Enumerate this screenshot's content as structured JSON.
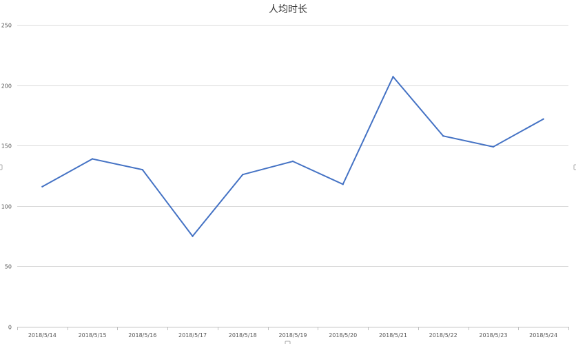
{
  "chart_data": {
    "type": "line",
    "title": "人均时长",
    "xlabel": "",
    "ylabel": "",
    "categories": [
      "2018/5/14",
      "2018/5/15",
      "2018/5/16",
      "2018/5/17",
      "2018/5/18",
      "2018/5/19",
      "2018/5/20",
      "2018/5/21",
      "2018/5/22",
      "2018/5/23",
      "2018/5/24"
    ],
    "series": [
      {
        "values": [
          116,
          139,
          130,
          75,
          126,
          137,
          118,
          207,
          158,
          149,
          172
        ],
        "color": "#4472c4"
      }
    ],
    "ylim": [
      0,
      250
    ],
    "yticks": [
      "0",
      "50",
      "100",
      "150",
      "200",
      "250"
    ],
    "grid": true,
    "legend": "none"
  }
}
